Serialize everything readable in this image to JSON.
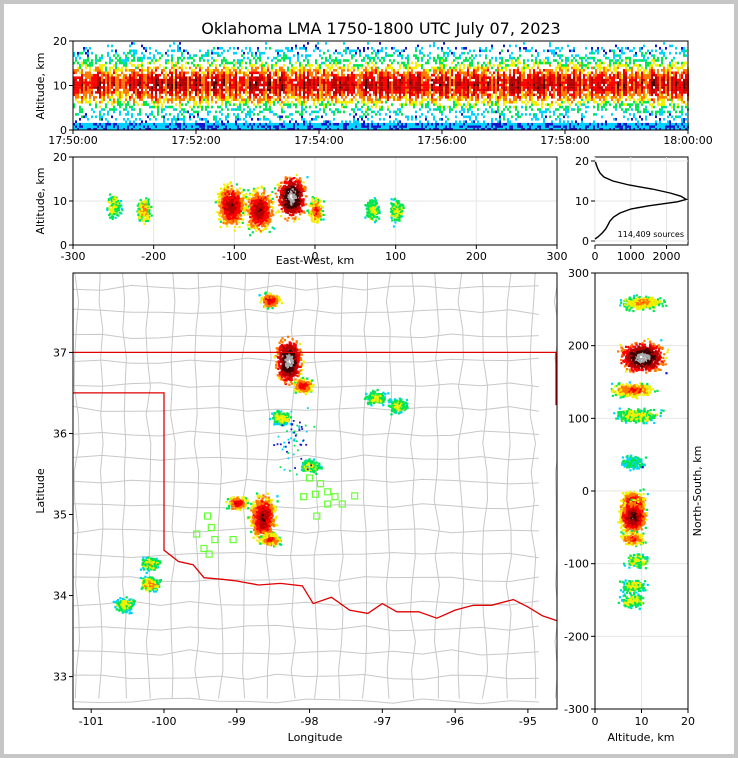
{
  "figure": {
    "title": "Oklahoma LMA 1750-1800 UTC July 07, 2023"
  },
  "colors": {
    "density": [
      "#1414c8",
      "#00d2ff",
      "#00e650",
      "#f0f000",
      "#ff7800",
      "#ff0000",
      "#b40000",
      "#3c0000",
      "#aaaaaa",
      "#ffffff"
    ],
    "state_border": "#e00000",
    "county_lines": "#c8c8c8",
    "stations": "#66ff33"
  },
  "chart_data": [
    {
      "id": "time_height",
      "type": "heatmap",
      "xlabel": "",
      "ylabel": "Altitude, km",
      "xlim": [
        "17:50:00",
        "18:00:00"
      ],
      "ylim": [
        0,
        20
      ],
      "xticks": [
        "17:50:00",
        "17:52:00",
        "17:54:00",
        "17:56:00",
        "17:58:00",
        "18:00:00"
      ],
      "yticks": [
        0,
        10,
        20
      ]
    },
    {
      "id": "ew_altitude",
      "type": "heatmap",
      "xlabel": "East-West, km",
      "ylabel": "Altitude, km",
      "xlim": [
        -300,
        300
      ],
      "ylim": [
        0,
        20
      ],
      "xticks": [
        -300,
        -200,
        -100,
        0,
        100,
        200,
        300
      ],
      "yticks": [
        0,
        10,
        20
      ],
      "clusters": [
        {
          "x": -250,
          "z": 9,
          "intensity": 2
        },
        {
          "x": -213,
          "z": 8,
          "intensity": 3
        },
        {
          "x": -105,
          "z": 9,
          "intensity": 6
        },
        {
          "x": -70,
          "z": 8,
          "intensity": 6
        },
        {
          "x": -30,
          "z": 11,
          "intensity": 9
        },
        {
          "x": 0,
          "z": 8,
          "intensity": 4
        },
        {
          "x": 70,
          "z": 8,
          "intensity": 2
        },
        {
          "x": 100,
          "z": 8,
          "intensity": 2
        }
      ]
    },
    {
      "id": "altitude_histogram",
      "type": "line",
      "xlabel": "",
      "ylabel": "",
      "xlim": [
        0,
        2600
      ],
      "ylim": [
        0,
        20
      ],
      "xticks": [
        0,
        1000,
        2000
      ],
      "yticks": [
        0,
        10,
        20
      ],
      "annotation": "114,409 sources",
      "points": [
        [
          0,
          0.5
        ],
        [
          80,
          1
        ],
        [
          200,
          2
        ],
        [
          300,
          3
        ],
        [
          360,
          4
        ],
        [
          420,
          5
        ],
        [
          520,
          6
        ],
        [
          700,
          7
        ],
        [
          1000,
          8
        ],
        [
          1500,
          8.8
        ],
        [
          1900,
          9.3
        ],
        [
          2300,
          9.8
        ],
        [
          2550,
          10.4
        ],
        [
          2400,
          11.2
        ],
        [
          2100,
          12
        ],
        [
          1600,
          13
        ],
        [
          950,
          14
        ],
        [
          500,
          15
        ],
        [
          250,
          16
        ],
        [
          140,
          17
        ],
        [
          80,
          18
        ],
        [
          40,
          19
        ],
        [
          10,
          19.8
        ]
      ]
    },
    {
      "id": "plan_view",
      "type": "heatmap",
      "xlabel": "Longitude",
      "ylabel": "Latitude",
      "xlim": [
        -101.25,
        -94.6
      ],
      "ylim": [
        32.6,
        37.98
      ],
      "xticks": [
        -101,
        -100,
        -99,
        -98,
        -97,
        -96,
        -95
      ],
      "yticks": [
        33,
        34,
        35,
        36,
        37
      ],
      "clusters": [
        {
          "lon": -98.55,
          "lat": 37.65,
          "intensity": 5
        },
        {
          "lon": -98.3,
          "lat": 36.9,
          "intensity": 9
        },
        {
          "lon": -98.1,
          "lat": 36.6,
          "intensity": 5
        },
        {
          "lon": -98.0,
          "lat": 35.6,
          "intensity": 2
        },
        {
          "lon": -97.1,
          "lat": 36.45,
          "intensity": 2
        },
        {
          "lon": -96.8,
          "lat": 36.35,
          "intensity": 2
        },
        {
          "lon": -98.4,
          "lat": 36.2,
          "intensity": 2
        },
        {
          "lon": -99.0,
          "lat": 35.15,
          "intensity": 5
        },
        {
          "lon": -98.65,
          "lat": 34.97,
          "intensity": 6
        },
        {
          "lon": -98.55,
          "lat": 34.7,
          "intensity": 4
        },
        {
          "lon": -100.2,
          "lat": 34.4,
          "intensity": 2
        },
        {
          "lon": -100.2,
          "lat": 34.15,
          "intensity": 3
        },
        {
          "lon": -100.55,
          "lat": 33.9,
          "intensity": 2
        }
      ],
      "stations": [
        [
          -98.0,
          35.45
        ],
        [
          -97.85,
          35.38
        ],
        [
          -97.75,
          35.28
        ],
        [
          -97.38,
          35.23
        ],
        [
          -97.55,
          35.13
        ],
        [
          -97.75,
          35.13
        ],
        [
          -97.92,
          35.25
        ],
        [
          -98.08,
          35.22
        ],
        [
          -97.9,
          34.98
        ],
        [
          -99.4,
          34.98
        ],
        [
          -99.35,
          34.84
        ],
        [
          -99.55,
          34.76
        ],
        [
          -99.3,
          34.69
        ],
        [
          -99.05,
          34.69
        ],
        [
          -99.45,
          34.58
        ],
        [
          -99.38,
          34.51
        ],
        [
          -97.65,
          35.22
        ]
      ],
      "state_border": {
        "north_lat": 37.0,
        "panhandle_south_lat": 36.5,
        "panhandle_east_lon": -100.0,
        "red_river": [
          [
            -100.0,
            34.56
          ],
          [
            -99.8,
            34.42
          ],
          [
            -99.6,
            34.38
          ],
          [
            -99.45,
            34.22
          ],
          [
            -99.2,
            34.2
          ],
          [
            -99.0,
            34.18
          ],
          [
            -98.7,
            34.13
          ],
          [
            -98.4,
            34.15
          ],
          [
            -98.1,
            34.12
          ],
          [
            -97.95,
            33.9
          ],
          [
            -97.7,
            33.98
          ],
          [
            -97.45,
            33.82
          ],
          [
            -97.2,
            33.78
          ],
          [
            -97.0,
            33.9
          ],
          [
            -96.8,
            33.8
          ],
          [
            -96.5,
            33.8
          ],
          [
            -96.25,
            33.72
          ],
          [
            -96.0,
            33.82
          ],
          [
            -95.75,
            33.88
          ],
          [
            -95.5,
            33.88
          ],
          [
            -95.2,
            33.95
          ],
          [
            -95.0,
            33.86
          ],
          [
            -94.8,
            33.75
          ],
          [
            -94.6,
            33.69
          ]
        ]
      }
    },
    {
      "id": "altitude_ns",
      "type": "heatmap",
      "xlabel": "Altitude, km",
      "ylabel": "North-South, km",
      "xlim": [
        0,
        20
      ],
      "ylim": [
        -300,
        300
      ],
      "xticks": [
        0,
        10,
        20
      ],
      "yticks": [
        -300,
        -200,
        -100,
        0,
        100,
        200,
        300
      ],
      "clusters": [
        {
          "z": 10,
          "y": 260,
          "intensity": 3
        },
        {
          "z": 10,
          "y": 185,
          "intensity": 9
        },
        {
          "z": 8,
          "y": 140,
          "intensity": 4
        },
        {
          "z": 9,
          "y": 105,
          "intensity": 2
        },
        {
          "z": 8,
          "y": 40,
          "intensity": 1
        },
        {
          "z": 8,
          "y": -20,
          "intensity": 6
        },
        {
          "z": 8,
          "y": -35,
          "intensity": 7
        },
        {
          "z": 8,
          "y": -65,
          "intensity": 4
        },
        {
          "z": 9,
          "y": -95,
          "intensity": 2
        },
        {
          "z": 8,
          "y": -130,
          "intensity": 2
        },
        {
          "z": 8,
          "y": -150,
          "intensity": 2
        }
      ]
    }
  ]
}
